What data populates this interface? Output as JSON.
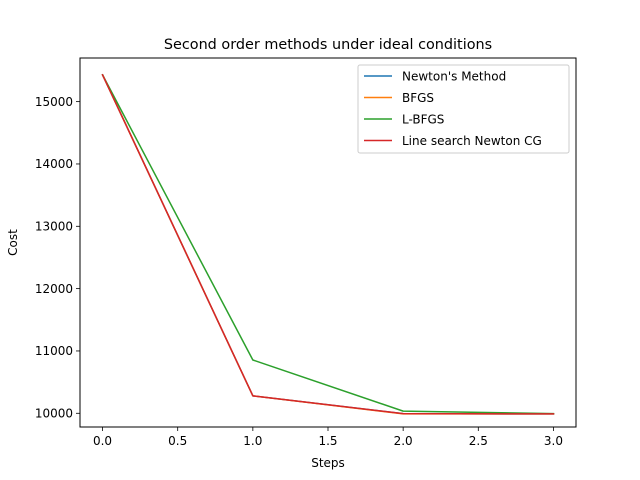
{
  "chart_data": {
    "type": "line",
    "title": "Second order methods under ideal conditions",
    "xlabel": "Steps",
    "ylabel": "Cost",
    "x": [
      0,
      1,
      2,
      3
    ],
    "xlim": [
      -0.15,
      3.15
    ],
    "ylim": [
      9780,
      15700
    ],
    "x_ticks": [
      0.0,
      0.5,
      1.0,
      1.5,
      2.0,
      2.5,
      3.0
    ],
    "x_tick_labels": [
      "0.0",
      "0.5",
      "1.0",
      "1.5",
      "2.0",
      "2.5",
      "3.0"
    ],
    "y_ticks": [
      10000,
      11000,
      12000,
      13000,
      14000,
      15000
    ],
    "y_tick_labels": [
      "10000",
      "11000",
      "12000",
      "13000",
      "14000",
      "15000"
    ],
    "grid": false,
    "legend_position": "top-right",
    "series": [
      {
        "name": "Newton's Method",
        "color": "#1f77b4",
        "values": [
          15430,
          10280,
          9995,
          9990
        ]
      },
      {
        "name": "BFGS",
        "color": "#ff7f0e",
        "values": [
          15430,
          10280,
          9990,
          9990
        ]
      },
      {
        "name": "L-BFGS",
        "color": "#2ca02c",
        "values": [
          15430,
          10855,
          10035,
          9995
        ]
      },
      {
        "name": "Line search Newton CG",
        "color": "#d62728",
        "values": [
          15430,
          10280,
          9995,
          9990
        ]
      }
    ]
  }
}
